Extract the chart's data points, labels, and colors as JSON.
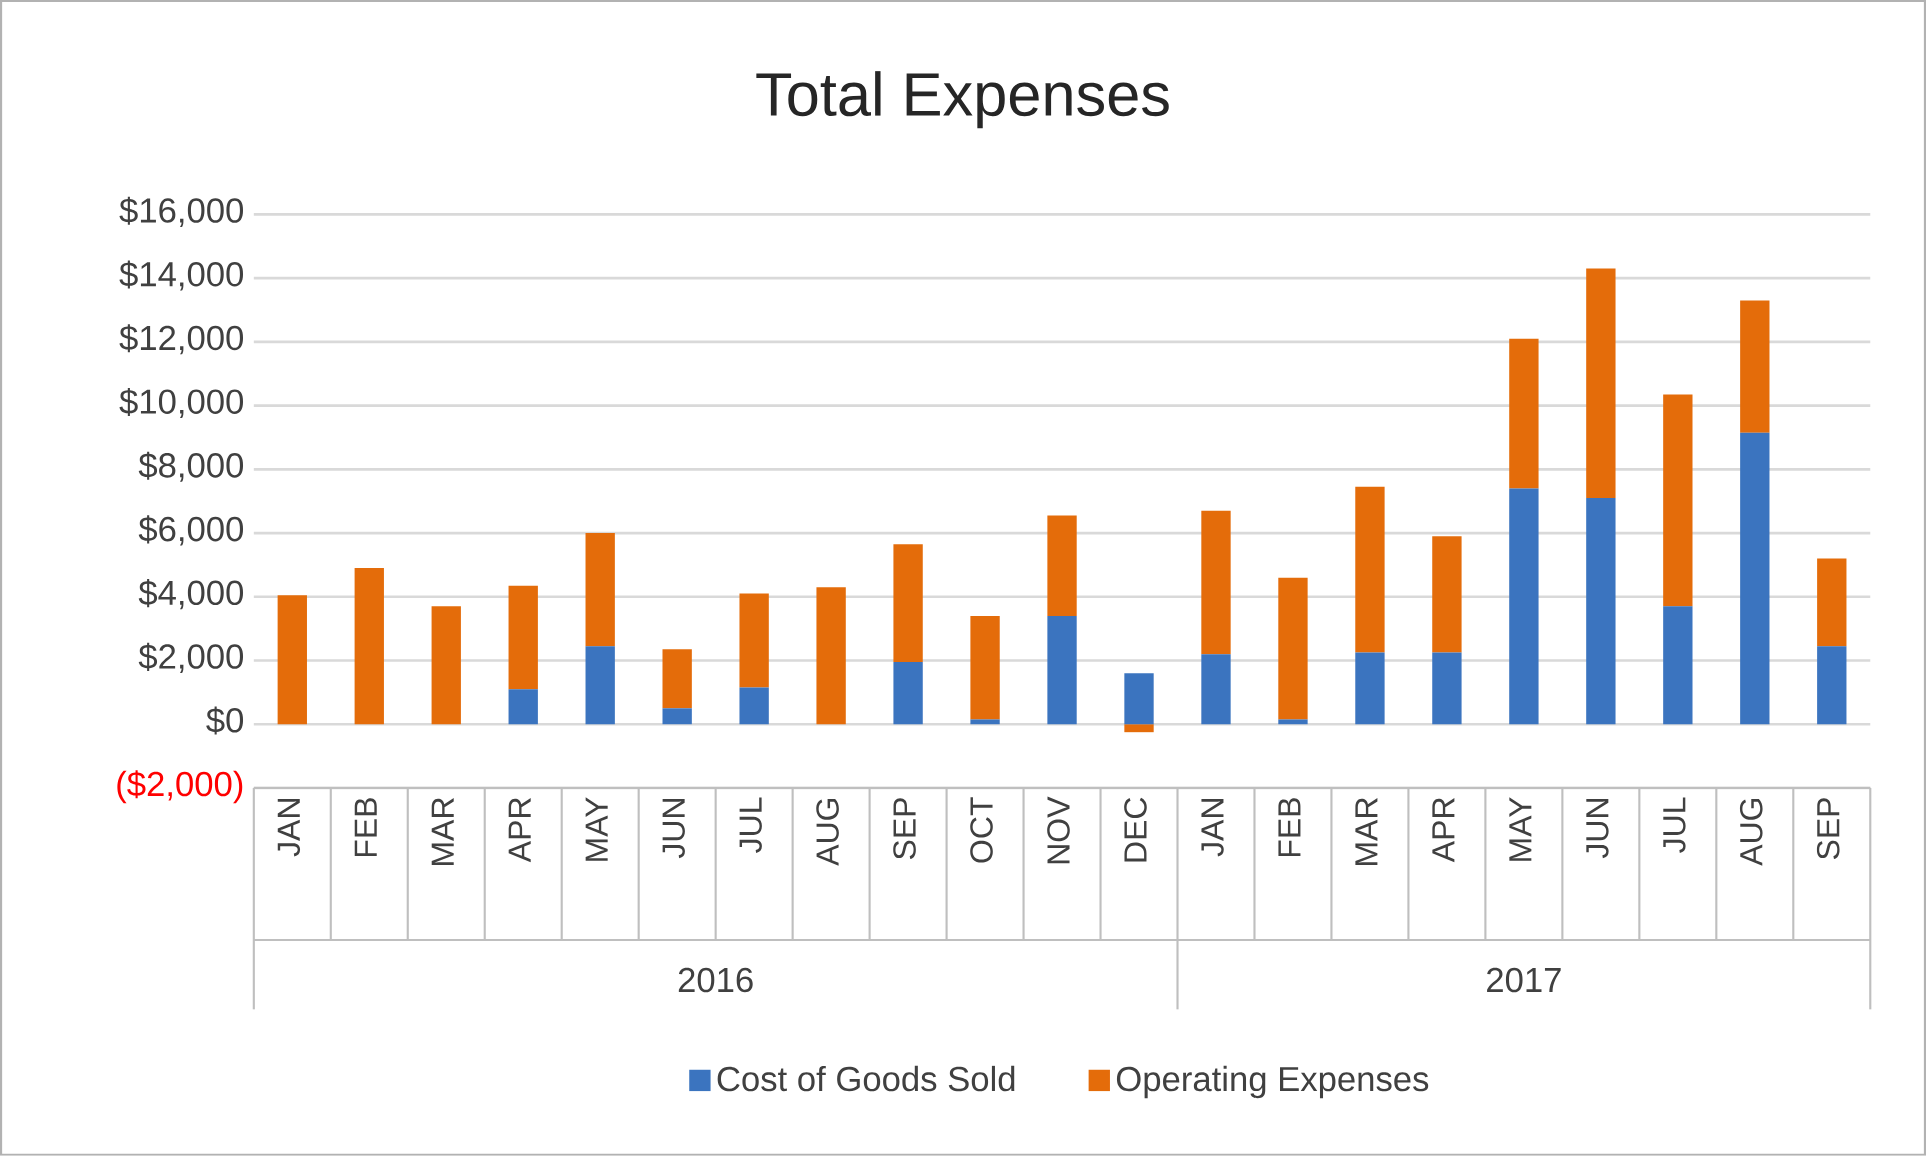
{
  "chart_data": {
    "type": "bar",
    "title": "Total Expenses",
    "stacked": true,
    "categories": [
      "JAN",
      "FEB",
      "MAR",
      "APR",
      "MAY",
      "JUN",
      "JUL",
      "AUG",
      "SEP",
      "OCT",
      "NOV",
      "DEC",
      "JAN",
      "FEB",
      "MAR",
      "APR",
      "MAY",
      "JUN",
      "JUL",
      "AUG",
      "SEP"
    ],
    "series": [
      {
        "name": "Cost of Goods Sold",
        "color": "#3b74bf",
        "values": [
          0,
          0,
          0,
          1100,
          2450,
          500,
          1150,
          0,
          1950,
          150,
          3400,
          1600,
          2200,
          150,
          2250,
          2250,
          7400,
          7100,
          3700,
          9150,
          2450
        ]
      },
      {
        "name": "Operating Expenses",
        "color": "#e46c0a",
        "values": [
          4050,
          4900,
          3700,
          3250,
          3550,
          1850,
          2950,
          4300,
          3700,
          3250,
          3150,
          -250,
          4500,
          4450,
          5200,
          3650,
          4700,
          7200,
          6650,
          4150,
          2750
        ]
      }
    ],
    "annotations": [
      "2016",
      "2017"
    ],
    "ylim": [
      -2000,
      16000
    ],
    "yticks": [
      {
        "value": -2000,
        "label": "($2,000)"
      },
      {
        "value": 0,
        "label": "$0"
      },
      {
        "value": 2000,
        "label": "$2,000"
      },
      {
        "value": 4000,
        "label": "$4,000"
      },
      {
        "value": 6000,
        "label": "$6,000"
      },
      {
        "value": 8000,
        "label": "$8,000"
      },
      {
        "value": 10000,
        "label": "$10,000"
      },
      {
        "value": 12000,
        "label": "$12,000"
      },
      {
        "value": 14000,
        "label": "$14,000"
      },
      {
        "value": 16000,
        "label": "$16,000"
      }
    ],
    "grid": "y",
    "legend": "bottom"
  }
}
